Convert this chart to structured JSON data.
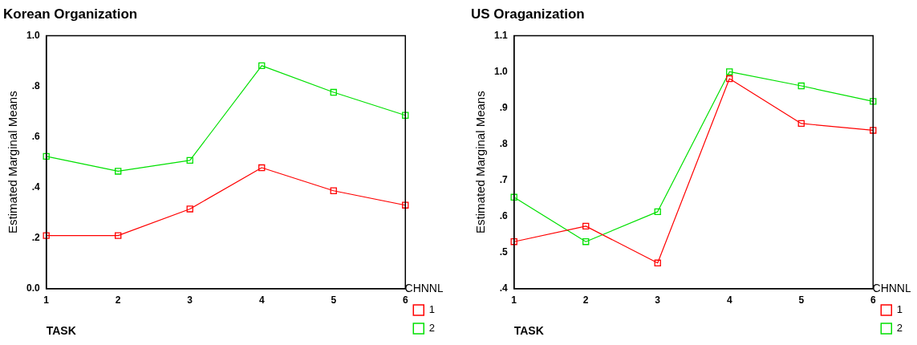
{
  "chart_data": [
    {
      "type": "line",
      "title": "Korean Organization",
      "xlabel": "TASK",
      "ylabel": "Estimated Marginal Means",
      "legend_title": "CHNNL",
      "categories": [
        "1",
        "2",
        "3",
        "4",
        "5",
        "6"
      ],
      "series": [
        {
          "name": "1",
          "color": "#ff0000",
          "values": [
            0.21,
            0.21,
            0.315,
            0.478,
            0.387,
            0.33
          ]
        },
        {
          "name": "2",
          "color": "#00e000",
          "values": [
            0.523,
            0.464,
            0.507,
            0.881,
            0.776,
            0.685
          ]
        }
      ],
      "ylim": [
        0,
        1
      ],
      "yticks": [
        {
          "value": 0,
          "label": "0.0"
        },
        {
          "value": 0.2,
          "label": ".2"
        },
        {
          "value": 0.4,
          "label": ".4"
        },
        {
          "value": 0.6,
          "label": ".6"
        },
        {
          "value": 0.8,
          "label": ".8"
        },
        {
          "value": 1,
          "label": "1.0"
        }
      ],
      "grid": false,
      "legend": "right",
      "marker": "square",
      "line_style": "solid"
    },
    {
      "type": "line",
      "title": "US Oraganization",
      "xlabel": "TASK",
      "ylabel": "Estimated Marginal Means",
      "legend_title": "CHNNL",
      "categories": [
        "1",
        "2",
        "3",
        "4",
        "5",
        "6"
      ],
      "series": [
        {
          "name": "1",
          "color": "#ff0000",
          "values": [
            0.53,
            0.573,
            0.471,
            0.981,
            0.857,
            0.838
          ]
        },
        {
          "name": "2",
          "color": "#00e000",
          "values": [
            0.653,
            0.53,
            0.613,
            1.0,
            0.961,
            0.918
          ]
        }
      ],
      "ylim": [
        0.4,
        1.1
      ],
      "yticks": [
        {
          "value": 0.4,
          "label": ".4"
        },
        {
          "value": 0.5,
          "label": ".5"
        },
        {
          "value": 0.6,
          "label": ".6"
        },
        {
          "value": 0.7,
          "label": ".7"
        },
        {
          "value": 0.8,
          "label": ".8"
        },
        {
          "value": 0.9,
          "label": ".9"
        },
        {
          "value": 1.0,
          "label": "1.0"
        },
        {
          "value": 1.1,
          "label": "1.1"
        }
      ],
      "grid": false,
      "legend": "right",
      "marker": "square",
      "line_style": "solid"
    }
  ]
}
